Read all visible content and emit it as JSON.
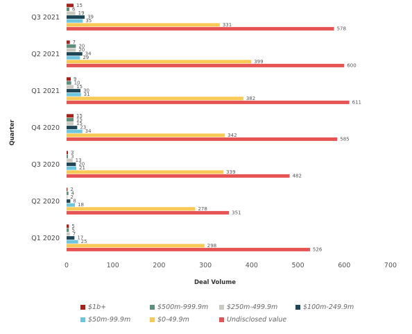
{
  "chart_data": {
    "type": "bar",
    "orientation": "horizontal",
    "categories": [
      "Q3 2021",
      "Q2 2021",
      "Q1 2021",
      "Q4 2020",
      "Q3 2020",
      "Q2 2020",
      "Q1 2020"
    ],
    "series": [
      {
        "name": "$1b+",
        "color": "#a8201a",
        "values": [
          15,
          7,
          9,
          15,
          3,
          2,
          5
        ]
      },
      {
        "name": "$500m-999.9m",
        "color": "#5e8f7c",
        "values": [
          6,
          20,
          10,
          15,
          3,
          4,
          5
        ]
      },
      {
        "name": "$250m-499.9m",
        "color": "#c9c9c0",
        "values": [
          19,
          20,
          15,
          15,
          13,
          2,
          7
        ]
      },
      {
        "name": "$100m-249.9m",
        "color": "#1e4656",
        "values": [
          39,
          34,
          30,
          23,
          20,
          8,
          17
        ]
      },
      {
        "name": "$50m-99.9m",
        "color": "#6ec6de",
        "values": [
          35,
          29,
          31,
          34,
          21,
          18,
          25
        ]
      },
      {
        "name": "$0-49.9m",
        "color": "#f8c955",
        "values": [
          331,
          399,
          382,
          342,
          339,
          278,
          298
        ]
      },
      {
        "name": "Undisclosed value",
        "color": "#e65353",
        "values": [
          578,
          600,
          611,
          585,
          482,
          351,
          526
        ]
      }
    ],
    "xlabel": "Deal Volume",
    "ylabel": "Quarter",
    "xlim": [
      0,
      700
    ],
    "xticks": [
      0,
      100,
      200,
      300,
      400,
      500,
      600,
      700
    ],
    "grid": false,
    "legend_position": "bottom"
  },
  "legend": {
    "rows": [
      [
        0,
        1,
        2,
        3
      ],
      [
        4,
        5,
        6
      ]
    ]
  }
}
